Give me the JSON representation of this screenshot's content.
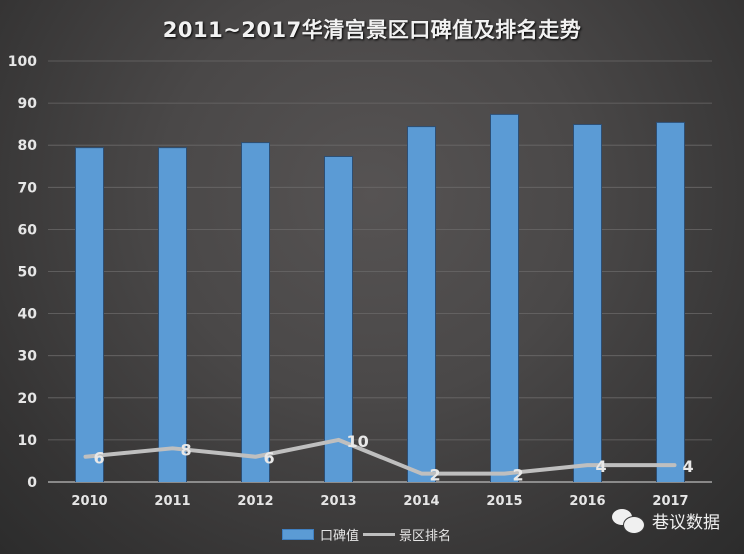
{
  "title": "2011~2017华清宫景区口碑值及排名走势",
  "legend": {
    "bar_label": "口碑值",
    "line_label": "景区排名"
  },
  "watermark": {
    "icon": "wechat-icon",
    "text": "巷议数据"
  },
  "colors": {
    "bar": "#5b9bd5",
    "line": "#bfbfbf",
    "background": "#4a4848",
    "gridline": "#6a6868"
  },
  "chart_data": {
    "type": "bar",
    "title": "2011~2017华清宫景区口碑值及排名走势",
    "xlabel": "",
    "ylabel": "",
    "ylim": [
      0,
      100
    ],
    "yticks": [
      0,
      10,
      20,
      30,
      40,
      50,
      60,
      70,
      80,
      90,
      100
    ],
    "grid": true,
    "legend_position": "bottom",
    "categories": [
      "2010",
      "2011",
      "2012",
      "2013",
      "2014",
      "2015",
      "2016",
      "2017"
    ],
    "series": [
      {
        "name": "口碑值",
        "type": "bar",
        "values": [
          79.3,
          79.3,
          80.5,
          77.2,
          84.3,
          87.2,
          84.8,
          85.3
        ]
      },
      {
        "name": "景区排名",
        "type": "line",
        "values": [
          6,
          8,
          6,
          10,
          2,
          2,
          4,
          4
        ],
        "data_labels": [
          "6",
          "8",
          "6",
          "10",
          "2",
          "2",
          "4",
          "4"
        ]
      }
    ]
  }
}
